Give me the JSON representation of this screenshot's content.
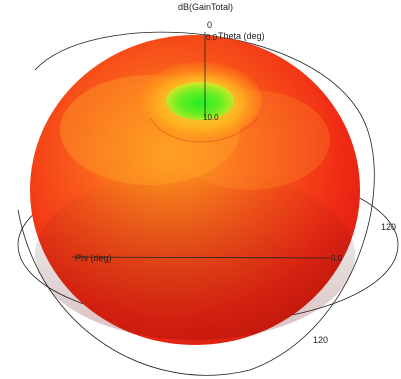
{
  "chart_data": {
    "type": "3d-polar-radiation-pattern",
    "quantity_label": "dB(GainTotal)",
    "theta_axis": {
      "label": "Theta (deg)",
      "zero_tick": "0",
      "theta_origin_label": "0.0"
    },
    "phi_axis": {
      "label": "Phi (deg)",
      "phi_origin_label": "0.0"
    },
    "ring_ticks": [
      "120",
      "120"
    ],
    "pattern_top_label": "10.0",
    "colors": {
      "outer": "#f32714",
      "mid": "#ff8a10",
      "inner": "#ffd21a",
      "peak": "#33ee22"
    }
  }
}
